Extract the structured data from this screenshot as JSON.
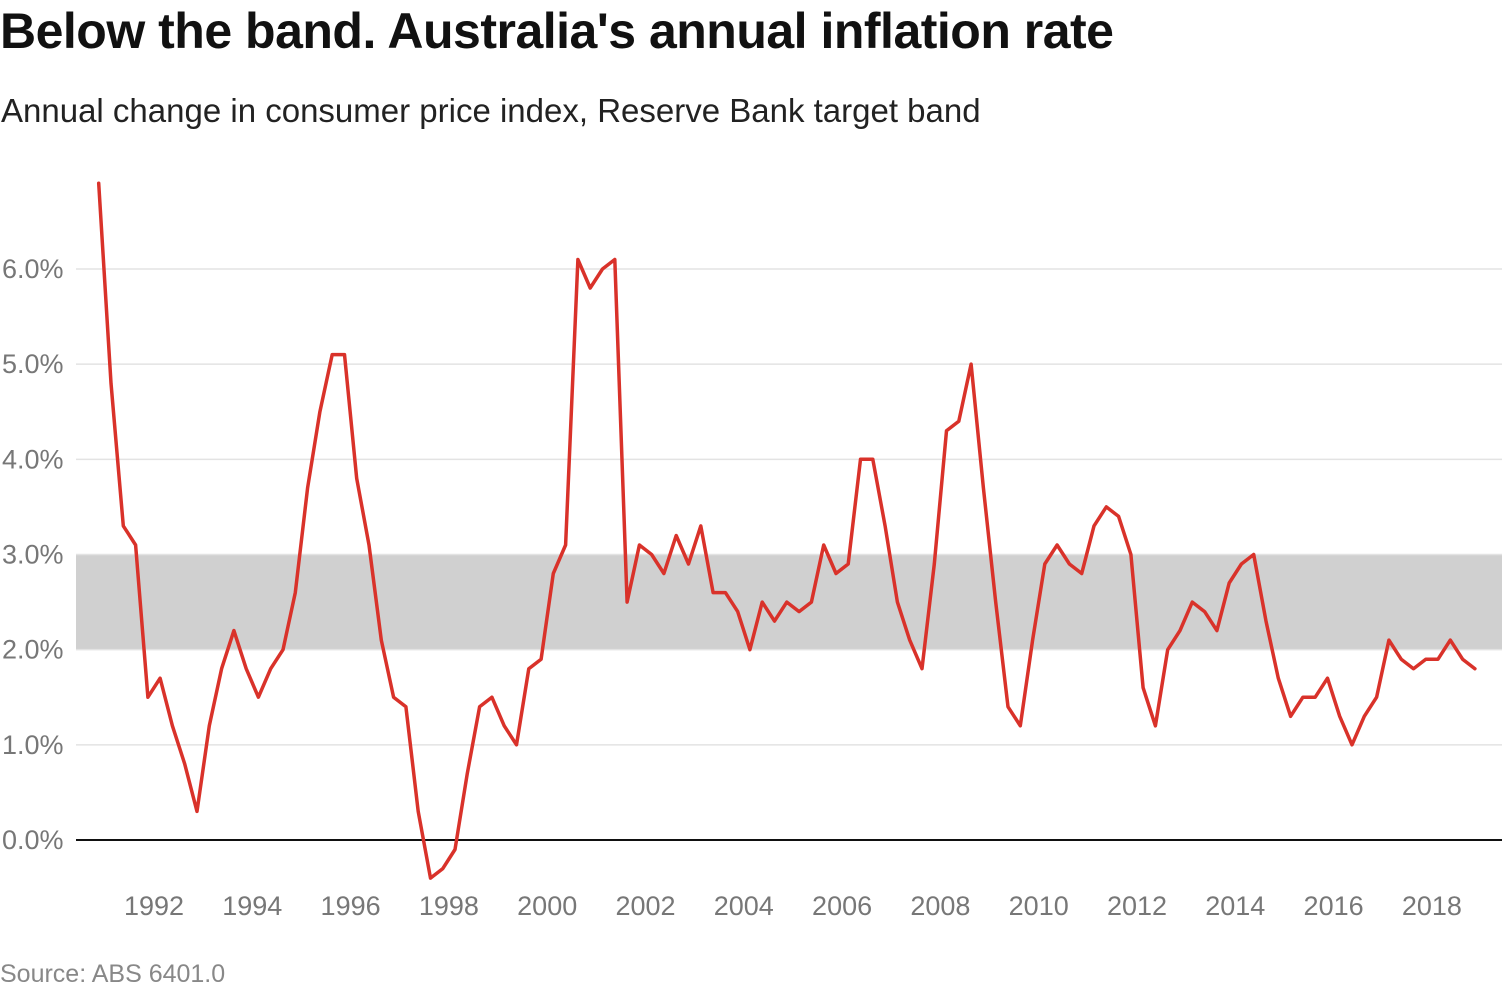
{
  "chart_data": {
    "type": "line",
    "title": "Below the band. Australia's annual inflation rate",
    "subtitle": "Annual change in consumer price index, Reserve Bank target band",
    "source": "Source: ABS 6401.0",
    "xlabel": "",
    "ylabel": "",
    "ylim": [
      -0.5,
      7
    ],
    "yticks": [
      0,
      1,
      2,
      3,
      4,
      5,
      6
    ],
    "ytick_labels": [
      "0.0%",
      "1.0%",
      "2.0%",
      "3.0%",
      "4.0%",
      "5.0%",
      "6.0%"
    ],
    "xticks": [
      1992,
      1994,
      1996,
      1998,
      2000,
      2002,
      2004,
      2006,
      2008,
      2010,
      2012,
      2014,
      2016,
      2018
    ],
    "xtick_labels": [
      "1992",
      "1994",
      "1996",
      "1998",
      "2000",
      "2002",
      "2004",
      "2006",
      "2008",
      "2010",
      "2012",
      "2014",
      "2016",
      "2018"
    ],
    "grid": true,
    "target_band": {
      "low": 2.0,
      "high": 3.0,
      "color": "#d0d0d0"
    },
    "series_color": "#d9322a",
    "x_start_quarter": "1990-Q4",
    "x_end_quarter": "2018-Q4",
    "frequency": "quarterly",
    "values": [
      6.9,
      4.8,
      3.3,
      3.1,
      1.5,
      1.7,
      1.2,
      0.8,
      0.3,
      1.2,
      1.8,
      2.2,
      1.8,
      1.5,
      1.8,
      2.0,
      2.6,
      3.7,
      4.5,
      5.1,
      5.1,
      3.8,
      3.1,
      2.1,
      1.5,
      1.4,
      0.3,
      -0.4,
      -0.3,
      -0.1,
      0.7,
      1.4,
      1.5,
      1.2,
      1.0,
      1.8,
      1.9,
      2.8,
      3.1,
      6.1,
      5.8,
      6.0,
      6.1,
      2.5,
      3.1,
      3.0,
      2.8,
      3.2,
      2.9,
      3.3,
      2.6,
      2.6,
      2.4,
      2.0,
      2.5,
      2.3,
      2.5,
      2.4,
      2.5,
      3.1,
      2.8,
      2.9,
      4.0,
      4.0,
      3.3,
      2.5,
      2.1,
      1.8,
      2.9,
      4.3,
      4.4,
      5.0,
      3.7,
      2.5,
      1.4,
      1.2,
      2.1,
      2.9,
      3.1,
      2.9,
      2.8,
      3.3,
      3.5,
      3.4,
      3.0,
      1.6,
      1.2,
      2.0,
      2.2,
      2.5,
      2.4,
      2.2,
      2.7,
      2.9,
      3.0,
      2.3,
      1.7,
      1.3,
      1.5,
      1.5,
      1.7,
      1.3,
      1.0,
      1.3,
      1.5,
      2.1,
      1.9,
      1.8,
      1.9,
      1.9,
      2.1,
      1.9,
      1.8
    ]
  }
}
